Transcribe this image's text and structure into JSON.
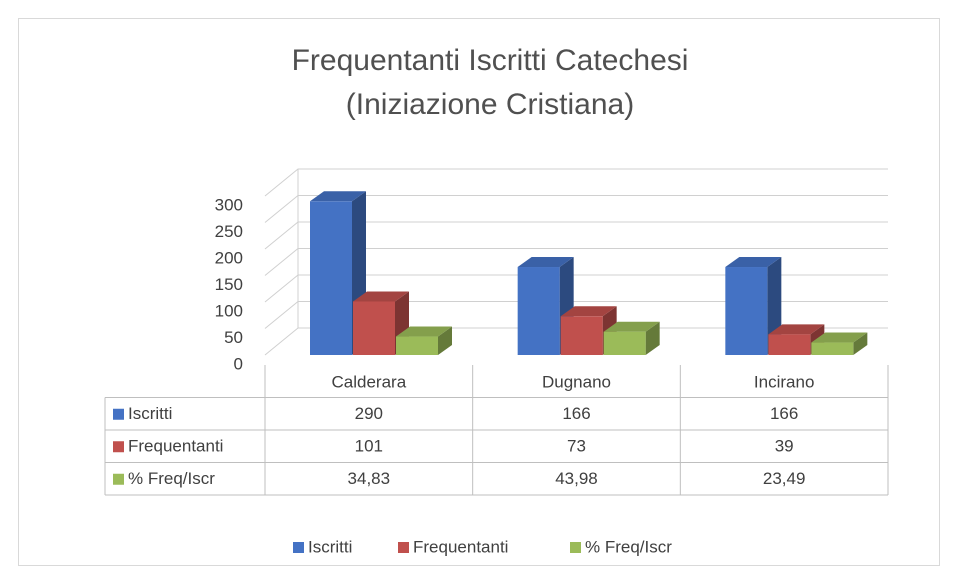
{
  "chart_data": {
    "type": "bar3d",
    "title": "Frequentanti Iscritti Catechesi",
    "subtitle": "(Iniziazione Cristiana)",
    "categories": [
      "Calderara",
      "Dugnano",
      "Incirano"
    ],
    "series": [
      {
        "name": "Iscritti",
        "color": "#4472c4",
        "values": [
          290,
          166,
          166
        ]
      },
      {
        "name": "Frequentanti",
        "color": "#c0504d",
        "values": [
          101,
          73,
          39
        ]
      },
      {
        "name": "% Freq/Iscr",
        "color": "#9bbb59",
        "values": [
          34.83,
          43.98,
          23.49
        ],
        "value_labels": [
          "34,83",
          "43,98",
          "23,49"
        ]
      }
    ],
    "ylim": [
      0,
      300
    ],
    "yticks": [
      0,
      50,
      100,
      150,
      200,
      250,
      300
    ],
    "grid": true,
    "legend": "bottom",
    "data_table": true
  }
}
